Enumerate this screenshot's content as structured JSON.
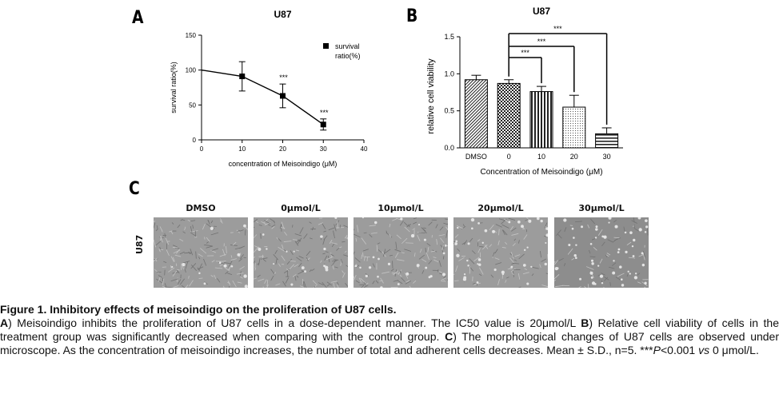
{
  "panels": {
    "a": "A",
    "b": "B",
    "c": "C"
  },
  "chart_data": [
    {
      "type": "line",
      "title": "U87",
      "xlabel": "concentration of Meisoindigo (μM)",
      "ylabel": "survival ratio(%)",
      "xlim": [
        0,
        40
      ],
      "ylim": [
        0,
        150
      ],
      "xticks": [
        0,
        10,
        20,
        30,
        40
      ],
      "yticks": [
        0,
        50,
        100,
        150
      ],
      "legend": {
        "label": "survival ratio(%)",
        "placement": "top-right"
      },
      "series": [
        {
          "name": "survival ratio(%)",
          "x": [
            0,
            10,
            20,
            30
          ],
          "y": [
            100,
            91,
            63,
            22
          ],
          "err": [
            0,
            21,
            17,
            8
          ],
          "markers": [
            false,
            true,
            true,
            true
          ],
          "annotations": [
            "",
            "",
            "***",
            "***"
          ]
        }
      ]
    },
    {
      "type": "bar",
      "title": "U87",
      "xlabel": "Concentration of Meisoindigo (μM)",
      "ylabel": "relative cell viability",
      "ylim": [
        0,
        1.5
      ],
      "yticks": [
        "0.0",
        "0.5",
        "1.0",
        "1.5"
      ],
      "categories": [
        "DMSO",
        "0",
        "10",
        "20",
        "30"
      ],
      "values": [
        0.92,
        0.87,
        0.76,
        0.55,
        0.19
      ],
      "errors": [
        0.06,
        0.05,
        0.07,
        0.16,
        0.08
      ],
      "patterns": [
        "diagonal",
        "checker",
        "vertical",
        "dots",
        "horizontal"
      ],
      "significance": [
        {
          "from": "0",
          "to": "10",
          "label": "***"
        },
        {
          "from": "0",
          "to": "20",
          "label": "***"
        },
        {
          "from": "0",
          "to": "30",
          "label": "***"
        }
      ]
    }
  ],
  "microscopy": {
    "row_label": "U87",
    "columns": [
      {
        "label": "DMSO",
        "density": 1.0
      },
      {
        "label": "0μmol/L",
        "density": 0.95
      },
      {
        "label": "10μmol/L",
        "density": 0.8
      },
      {
        "label": "20μmol/L",
        "density": 0.55
      },
      {
        "label": "30μmol/L",
        "density": 0.3
      }
    ]
  },
  "caption": {
    "title": "Figure 1. Inhibitory effects of meisoindigo on the proliferation of U87 cells.",
    "a_letter": "A",
    "a_text": ") Meisoindigo inhibits the proliferation of U87 cells in a dose-dependent manner. The IC50 value is 20μmol/L ",
    "b_letter": "B",
    "b_text": ") Relative cell viability of cells in the treatment group was significantly decreased when comparing with the control group. ",
    "c_letter": "C",
    "c_text": ") The morphological changes of U87 cells are observed under microscope. As the concentration of meisoindigo increases, the number of total and adherent cells decreases. Mean ± S.D., n=5. ***",
    "p_italic": "P",
    "p_text": "<0.001 ",
    "vs_italic": "vs",
    "vs_text": " 0 μmol/L."
  }
}
